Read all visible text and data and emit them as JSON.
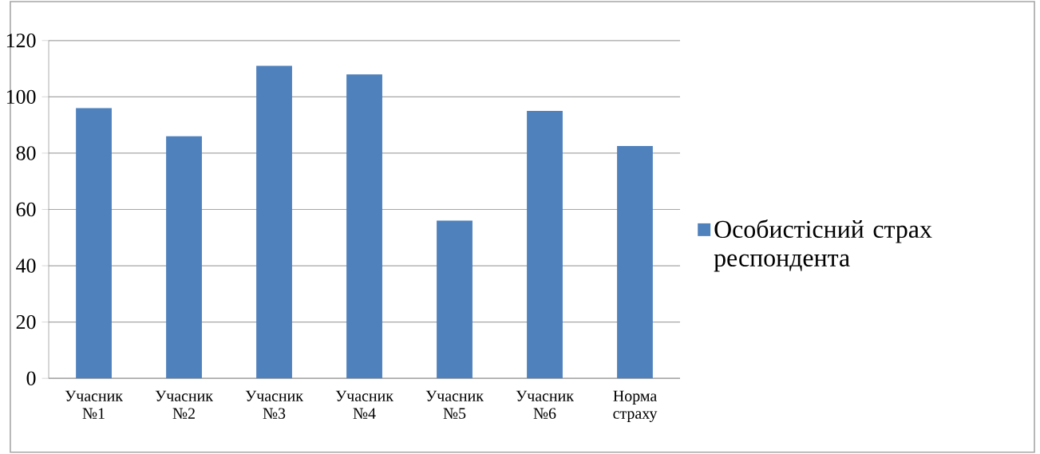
{
  "chart_data": {
    "type": "bar",
    "categories": [
      "Учасник №1",
      "Учасник №2",
      "Учасник №3",
      "Учасник №4",
      "Учасник №5",
      "Учасник №6",
      "Норма страху"
    ],
    "series": [
      {
        "name": "Особистісний страх респондента",
        "color": "#4f81bd",
        "values": [
          96,
          86,
          111,
          108,
          56,
          95,
          82.5
        ]
      }
    ],
    "ylim": [
      0,
      120
    ],
    "yticks": [
      0,
      20,
      40,
      60,
      80,
      100,
      120
    ],
    "grid": "y",
    "legend": "right"
  }
}
